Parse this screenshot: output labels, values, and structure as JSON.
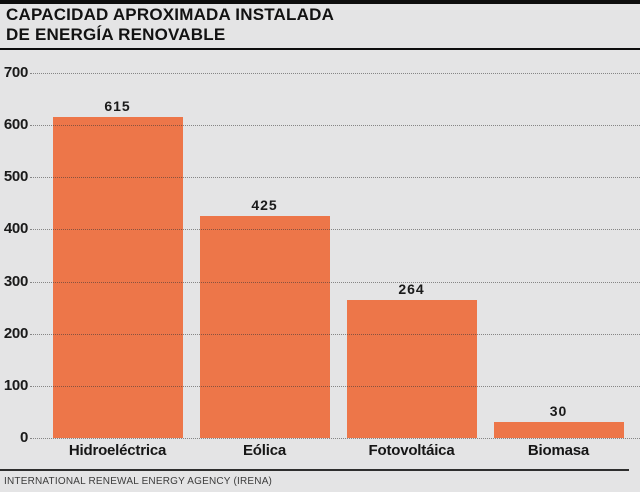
{
  "header": {
    "title_line1": "CAPACIDAD APROXIMADA INSTALADA",
    "title_line2": "DE ENERGÍA RENOVABLE"
  },
  "source": {
    "text": "INTERNATIONAL RENEWAL ENERGY AGENCY (IRENA)"
  },
  "colors": {
    "background": "#E4E4E5",
    "bar": "#ED7649",
    "rule": "#0D0D0D",
    "grid": "rgba(55,55,55,0.55)",
    "text": "#1A1A1A"
  },
  "chart_data": {
    "type": "bar",
    "title": "CAPACIDAD APROXIMADA INSTALADA DE ENERGÍA RENOVABLE",
    "categories": [
      "Hidroeléctrica",
      "Eólica",
      "Fotovoltáica",
      "Biomasa"
    ],
    "values": [
      615,
      425,
      264,
      30
    ],
    "value_labels": [
      "615",
      "425",
      "264",
      "30"
    ],
    "xlabel": "",
    "ylabel": "",
    "ylim": [
      0,
      700
    ],
    "yticks": [
      0,
      100,
      200,
      300,
      400,
      500,
      600,
      700
    ],
    "grid": "horizontal-dotted-over-bars",
    "legend": "none",
    "bar_color": "#ED7649",
    "source": "INTERNATIONAL RENEWAL ENERGY AGENCY (IRENA)"
  }
}
